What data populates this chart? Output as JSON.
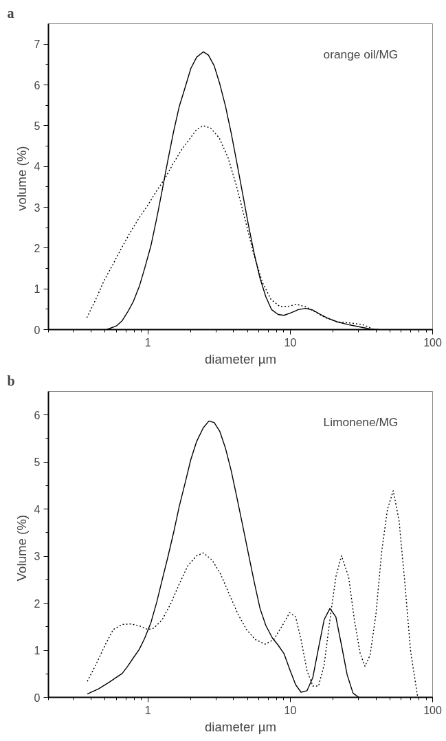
{
  "chart_data": [
    {
      "type": "line",
      "title": "a",
      "annotations": [
        "orange oil/MG"
      ],
      "xlabel": "diameter µm",
      "ylabel": "volume  (%)",
      "log": "x",
      "xlim": [
        0.2,
        100
      ],
      "xticks": [
        1,
        10,
        100
      ],
      "ylim": [
        0,
        7.5
      ],
      "yticks": [
        0,
        1,
        2,
        3,
        4,
        5,
        6,
        7
      ],
      "grid": false,
      "series": [
        {
          "color": "#000000",
          "line_style": "solid",
          "x": [
            0.512,
            0.54,
            0.6,
            0.66,
            0.72,
            0.79,
            0.87,
            0.95,
            1.05,
            1.15,
            1.26,
            1.38,
            1.52,
            1.66,
            1.83,
            2.0,
            2.2,
            2.45,
            2.66,
            2.92,
            3.2,
            3.51,
            3.85,
            4.22,
            4.64,
            5.09,
            5.59,
            6.13,
            6.73,
            7.39,
            8.22,
            9.03,
            10.1,
            11.4,
            12.8,
            14.4,
            16.1,
            18.1,
            21.4,
            25.7,
            32.4,
            37.3,
            41.9
          ],
          "values": [
            0,
            0.03,
            0.09,
            0.22,
            0.43,
            0.69,
            1.06,
            1.51,
            2.06,
            2.71,
            3.42,
            4.15,
            4.88,
            5.47,
            5.95,
            6.4,
            6.68,
            6.81,
            6.73,
            6.47,
            6.02,
            5.47,
            4.81,
            4.08,
            3.31,
            2.55,
            1.85,
            1.26,
            0.81,
            0.49,
            0.37,
            0.35,
            0.41,
            0.49,
            0.52,
            0.48,
            0.38,
            0.29,
            0.19,
            0.12,
            0.05,
            0.01,
            0
          ]
        },
        {
          "color": "#000000",
          "line_style": "dotted",
          "x": [
            0.372,
            0.43,
            0.49,
            0.57,
            0.65,
            0.75,
            0.86,
            0.99,
            1.14,
            1.31,
            1.51,
            1.73,
            1.99,
            2.2,
            2.45,
            2.76,
            3.17,
            3.65,
            4.19,
            4.82,
            5.54,
            6.37,
            7.32,
            8.42,
            9.68,
            11.1,
            12.8,
            14.7,
            17.7,
            21.4,
            26.9,
            32.4,
            39.1
          ],
          "values": [
            0.29,
            0.74,
            1.19,
            1.61,
            1.99,
            2.38,
            2.72,
            3.03,
            3.38,
            3.69,
            4.08,
            4.42,
            4.7,
            4.91,
            5.0,
            4.94,
            4.7,
            4.22,
            3.52,
            2.69,
            1.85,
            1.16,
            0.74,
            0.57,
            0.57,
            0.62,
            0.56,
            0.45,
            0.29,
            0.19,
            0.16,
            0.12,
            0
          ]
        }
      ]
    },
    {
      "type": "line",
      "title": "b",
      "annotations": [
        "Limonene/MG"
      ],
      "xlabel": "diameter µm",
      "ylabel": "Volume   (%)",
      "log": "x",
      "xlim": [
        0.2,
        100
      ],
      "xticks": [
        1,
        10,
        100
      ],
      "ylim": [
        0,
        6.5
      ],
      "yticks": [
        0,
        1,
        2,
        3,
        4,
        5,
        6
      ],
      "grid": false,
      "series": [
        {
          "color": "#000000",
          "line_style": "solid",
          "x": [
            0.375,
            0.45,
            0.54,
            0.66,
            0.72,
            0.79,
            0.87,
            0.95,
            1.05,
            1.15,
            1.26,
            1.38,
            1.52,
            1.66,
            1.83,
            2.0,
            2.2,
            2.45,
            2.68,
            2.92,
            3.2,
            3.51,
            3.85,
            4.22,
            4.64,
            5.09,
            5.59,
            6.13,
            6.73,
            7.49,
            8.22,
            9.03,
            9.9,
            10.9,
            11.9,
            13.1,
            14.4,
            15.8,
            17.3,
            19.0,
            20.9,
            22.9,
            25.1,
            27.6,
            30.3
          ],
          "values": [
            0.07,
            0.18,
            0.33,
            0.51,
            0.66,
            0.84,
            1.02,
            1.26,
            1.59,
            2.01,
            2.5,
            2.98,
            3.52,
            4.06,
            4.57,
            5.05,
            5.44,
            5.73,
            5.87,
            5.84,
            5.65,
            5.29,
            4.81,
            4.24,
            3.64,
            3.04,
            2.44,
            1.89,
            1.53,
            1.26,
            1.11,
            0.93,
            0.6,
            0.27,
            0.11,
            0.14,
            0.42,
            1.05,
            1.65,
            1.89,
            1.71,
            1.11,
            0.48,
            0.09,
            0
          ]
        },
        {
          "color": "#000000",
          "line_style": "dotted",
          "x": [
            0.375,
            0.43,
            0.5,
            0.57,
            0.66,
            0.76,
            0.87,
            1.0,
            1.1,
            1.26,
            1.44,
            1.66,
            1.91,
            2.2,
            2.45,
            2.82,
            3.24,
            3.73,
            4.29,
            4.93,
            5.67,
            6.67,
            7.67,
            8.82,
            9.9,
            10.9,
            11.9,
            13.1,
            14.4,
            15.8,
            17.3,
            19.0,
            20.9,
            22.9,
            25.7,
            28.2,
            31.0,
            33.5,
            36.4,
            40.0,
            43.9,
            48.2,
            52.9,
            58.1,
            63.8,
            70.0,
            78.6
          ],
          "values": [
            0.34,
            0.69,
            1.11,
            1.44,
            1.55,
            1.56,
            1.52,
            1.44,
            1.47,
            1.65,
            1.98,
            2.41,
            2.8,
            3.01,
            3.07,
            2.92,
            2.62,
            2.19,
            1.77,
            1.44,
            1.23,
            1.13,
            1.23,
            1.53,
            1.8,
            1.71,
            1.23,
            0.57,
            0.24,
            0.24,
            0.69,
            1.65,
            2.56,
            3.01,
            2.56,
            1.65,
            0.93,
            0.66,
            0.9,
            1.77,
            3.1,
            4.0,
            4.39,
            3.76,
            2.44,
            0.99,
            0
          ]
        }
      ]
    }
  ]
}
